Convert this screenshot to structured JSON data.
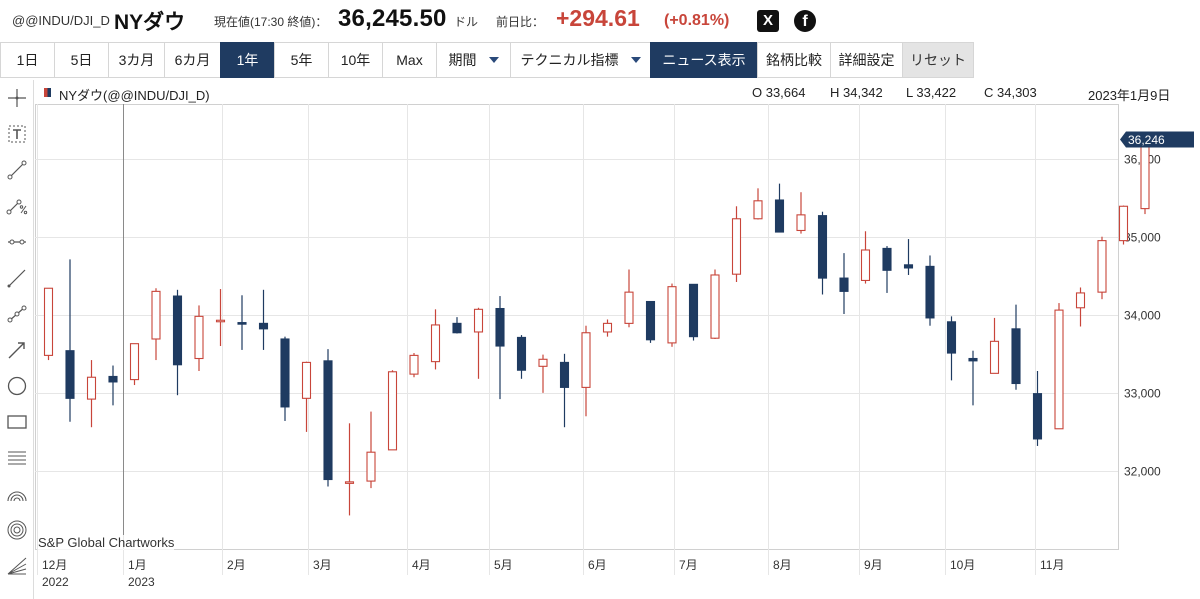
{
  "quote": {
    "symbol": "@@INDU/DJI_D",
    "name": "NYダウ",
    "price_label": "現在値(17:30 終値)：",
    "price": "36,245.50",
    "unit": "ドル",
    "prev_label": "前日比：",
    "change": "+294.61",
    "change_pct": "(+0.81%)"
  },
  "share": {
    "x_label": "X",
    "fb_label": "f"
  },
  "toolbar": {
    "periods": [
      "1日",
      "5日",
      "3カ月",
      "6カ月",
      "1年",
      "5年",
      "10年",
      "Max"
    ],
    "active_period": "1年",
    "period_menu": "期間",
    "technical_menu": "テクニカル指標",
    "news_button": "ニュース表示",
    "compare_button": "銘柄比較",
    "settings_button": "詳細設定",
    "reset_button": "リセット"
  },
  "tools": [
    "crosshair-icon",
    "text-tool-icon",
    "trendline-icon",
    "percent-line-icon",
    "horizontal-line-icon",
    "ray-line-icon",
    "dotted-line-icon",
    "arrow-line-icon",
    "circle-tool-icon",
    "rectangle-tool-icon",
    "fibonacci-lines-icon",
    "arc-tool-icon",
    "concentric-circles-icon",
    "fan-tool-icon"
  ],
  "chart_header": {
    "series": "NYダウ(@@INDU/DJI_D)",
    "open": "O 33,664",
    "high": "H 34,342",
    "low": "L 33,422",
    "close": "C 34,303",
    "date": "2023年1月9日"
  },
  "credit": "S&P Global Chartworks",
  "colors": {
    "up": "#c8453a",
    "down": "#1f3b61",
    "grid": "#e6e6e6",
    "accent": "#1f3b61"
  },
  "chart_data": {
    "type": "candlestick",
    "interval": "weekly",
    "ylim": [
      31000,
      36700
    ],
    "y_ticks": [
      32000,
      33000,
      34000,
      35000,
      36000
    ],
    "y_tick_labels": [
      "32,000",
      "33,000",
      "34,000",
      "35,000",
      "36,000"
    ],
    "last_price_label": "36,246",
    "last_price": 36246,
    "x_labels": [
      {
        "label": "12月",
        "sub": "2022",
        "index": 0
      },
      {
        "label": "1月",
        "sub": "2023",
        "index": 4
      },
      {
        "label": "2月",
        "sub": "",
        "index": 8.6
      },
      {
        "label": "3月",
        "sub": "",
        "index": 12.6
      },
      {
        "label": "4月",
        "sub": "",
        "index": 17.2
      },
      {
        "label": "5月",
        "sub": "",
        "index": 21
      },
      {
        "label": "6月",
        "sub": "",
        "index": 25.4
      },
      {
        "label": "7月",
        "sub": "",
        "index": 29.6
      },
      {
        "label": "8月",
        "sub": "",
        "index": 34
      },
      {
        "label": "9月",
        "sub": "",
        "index": 38.2
      },
      {
        "label": "10月",
        "sub": "",
        "index": 42.2
      },
      {
        "label": "11月",
        "sub": "",
        "index": 46.4
      }
    ],
    "crosshair_index": 4,
    "candles": [
      {
        "o": 33480,
        "h": 34340,
        "l": 33420,
        "c": 34340
      },
      {
        "o": 33540,
        "h": 34710,
        "l": 32630,
        "c": 32930
      },
      {
        "o": 32920,
        "h": 33420,
        "l": 32560,
        "c": 33200
      },
      {
        "o": 33210,
        "h": 33350,
        "l": 32840,
        "c": 33140
      },
      {
        "o": 33170,
        "h": 33600,
        "l": 33100,
        "c": 33630
      },
      {
        "o": 33690,
        "h": 34340,
        "l": 33420,
        "c": 34300
      },
      {
        "o": 34240,
        "h": 34320,
        "l": 32970,
        "c": 33360
      },
      {
        "o": 33440,
        "h": 34120,
        "l": 33280,
        "c": 33980
      },
      {
        "o": 33920,
        "h": 34330,
        "l": 33600,
        "c": 33930
      },
      {
        "o": 33900,
        "h": 34250,
        "l": 33550,
        "c": 33880
      },
      {
        "o": 33890,
        "h": 34320,
        "l": 33550,
        "c": 33820
      },
      {
        "o": 33690,
        "h": 33720,
        "l": 32640,
        "c": 32820
      },
      {
        "o": 32930,
        "h": 33400,
        "l": 32500,
        "c": 33390
      },
      {
        "o": 33410,
        "h": 33560,
        "l": 31800,
        "c": 31890
      },
      {
        "o": 31850,
        "h": 32610,
        "l": 31430,
        "c": 31860
      },
      {
        "o": 31870,
        "h": 32760,
        "l": 31780,
        "c": 32240
      },
      {
        "o": 32270,
        "h": 33290,
        "l": 32270,
        "c": 33270
      },
      {
        "o": 33240,
        "h": 33510,
        "l": 33200,
        "c": 33480
      },
      {
        "o": 33400,
        "h": 34070,
        "l": 33300,
        "c": 33870
      },
      {
        "o": 33890,
        "h": 33970,
        "l": 33760,
        "c": 33770
      },
      {
        "o": 33780,
        "h": 34090,
        "l": 33180,
        "c": 34070
      },
      {
        "o": 34080,
        "h": 34240,
        "l": 32920,
        "c": 33600
      },
      {
        "o": 33710,
        "h": 33740,
        "l": 33180,
        "c": 33290
      },
      {
        "o": 33340,
        "h": 33490,
        "l": 33000,
        "c": 33430
      },
      {
        "o": 33390,
        "h": 33500,
        "l": 32560,
        "c": 33070
      },
      {
        "o": 33070,
        "h": 33860,
        "l": 32700,
        "c": 33770
      },
      {
        "o": 33780,
        "h": 33940,
        "l": 33720,
        "c": 33890
      },
      {
        "o": 33890,
        "h": 34580,
        "l": 33840,
        "c": 34290
      },
      {
        "o": 34170,
        "h": 34170,
        "l": 33640,
        "c": 33680
      },
      {
        "o": 33640,
        "h": 34400,
        "l": 33590,
        "c": 34360
      },
      {
        "o": 34390,
        "h": 34390,
        "l": 33670,
        "c": 33720
      },
      {
        "o": 33700,
        "h": 34580,
        "l": 33690,
        "c": 34510
      },
      {
        "o": 34520,
        "h": 35390,
        "l": 34420,
        "c": 35230
      },
      {
        "o": 35230,
        "h": 35620,
        "l": 35220,
        "c": 35460
      },
      {
        "o": 35470,
        "h": 35680,
        "l": 35060,
        "c": 35060
      },
      {
        "o": 35080,
        "h": 35570,
        "l": 35040,
        "c": 35280
      },
      {
        "o": 35270,
        "h": 35320,
        "l": 34260,
        "c": 34470
      },
      {
        "o": 34470,
        "h": 34790,
        "l": 34010,
        "c": 34300
      },
      {
        "o": 34440,
        "h": 35070,
        "l": 34400,
        "c": 34830
      },
      {
        "o": 34850,
        "h": 34880,
        "l": 34280,
        "c": 34570
      },
      {
        "o": 34640,
        "h": 34970,
        "l": 34510,
        "c": 34600
      },
      {
        "o": 34620,
        "h": 34760,
        "l": 33860,
        "c": 33960
      },
      {
        "o": 33910,
        "h": 33980,
        "l": 33160,
        "c": 33510
      },
      {
        "o": 33440,
        "h": 33540,
        "l": 32840,
        "c": 33410
      },
      {
        "o": 33250,
        "h": 33960,
        "l": 33250,
        "c": 33660
      },
      {
        "o": 33820,
        "h": 34130,
        "l": 33040,
        "c": 33120
      },
      {
        "o": 32990,
        "h": 33280,
        "l": 32320,
        "c": 32410
      },
      {
        "o": 32540,
        "h": 34150,
        "l": 32540,
        "c": 34060
      },
      {
        "o": 34090,
        "h": 34350,
        "l": 33850,
        "c": 34280
      },
      {
        "o": 34290,
        "h": 35000,
        "l": 34200,
        "c": 34950
      },
      {
        "o": 34950,
        "h": 35400,
        "l": 34900,
        "c": 35390
      },
      {
        "o": 35360,
        "h": 36290,
        "l": 35290,
        "c": 36246
      }
    ]
  }
}
